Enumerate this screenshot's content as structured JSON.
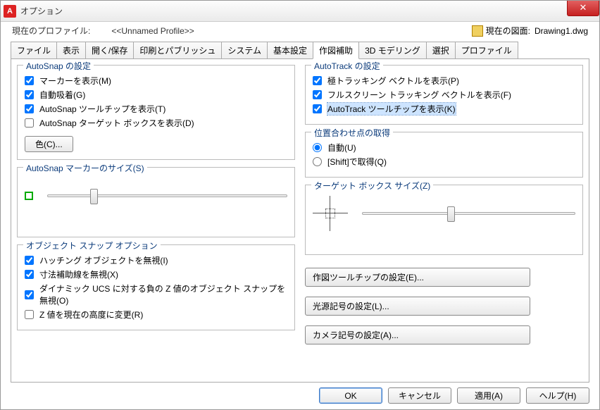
{
  "window": {
    "title": "オプション"
  },
  "profile": {
    "label": "現在のプロファイル:",
    "value": "<<Unnamed Profile>>",
    "drawing_label": "現在の図面:",
    "drawing_value": "Drawing1.dwg"
  },
  "tabs": [
    "ファイル",
    "表示",
    "開く/保存",
    "印刷とパブリッシュ",
    "システム",
    "基本設定",
    "作図補助",
    "3D モデリング",
    "選択",
    "プロファイル"
  ],
  "active_tab_index": 6,
  "autosnap": {
    "legend": "AutoSnap の設定",
    "marker": "マーカーを表示(M)",
    "magnet": "自動吸着(G)",
    "tooltip": "AutoSnap ツールチップを表示(T)",
    "aperture": "AutoSnap ターゲット ボックスを表示(D)",
    "color_btn": "色(C)..."
  },
  "autosnap_marker_size": {
    "legend": "AutoSnap マーカーのサイズ(S)"
  },
  "osnap_options": {
    "legend": "オブジェクト スナップ オプション",
    "ignore_hatch": "ハッチング オブジェクトを無視(I)",
    "ignore_ext": "寸法補助線を無視(X)",
    "dyn_ucs": "ダイナミック UCS に対する負の Z 値のオブジェクト スナップを無視(O)",
    "replace_z": "Z 値を現在の高度に変更(R)"
  },
  "autotrack": {
    "legend": "AutoTrack の設定",
    "polar": "極トラッキング ベクトルを表示(P)",
    "fullscreen": "フルスクリーン トラッキング ベクトルを表示(F)",
    "tooltip": "AutoTrack ツールチップを表示(K)"
  },
  "alignment": {
    "legend": "位置合わせ点の取得",
    "auto": "自動(U)",
    "shift": "[Shift]で取得(Q)"
  },
  "target_box_size": {
    "legend": "ターゲット ボックス サイズ(Z)"
  },
  "buttons": {
    "drafting": "作図ツールチップの設定(E)...",
    "light": "光源記号の設定(L)...",
    "camera": "カメラ記号の設定(A)..."
  },
  "footer": {
    "ok": "OK",
    "cancel": "キャンセル",
    "apply": "適用(A)",
    "help": "ヘルプ(H)"
  },
  "slider_positions": {
    "autosnap_pct": 18,
    "target_pct": 40
  }
}
